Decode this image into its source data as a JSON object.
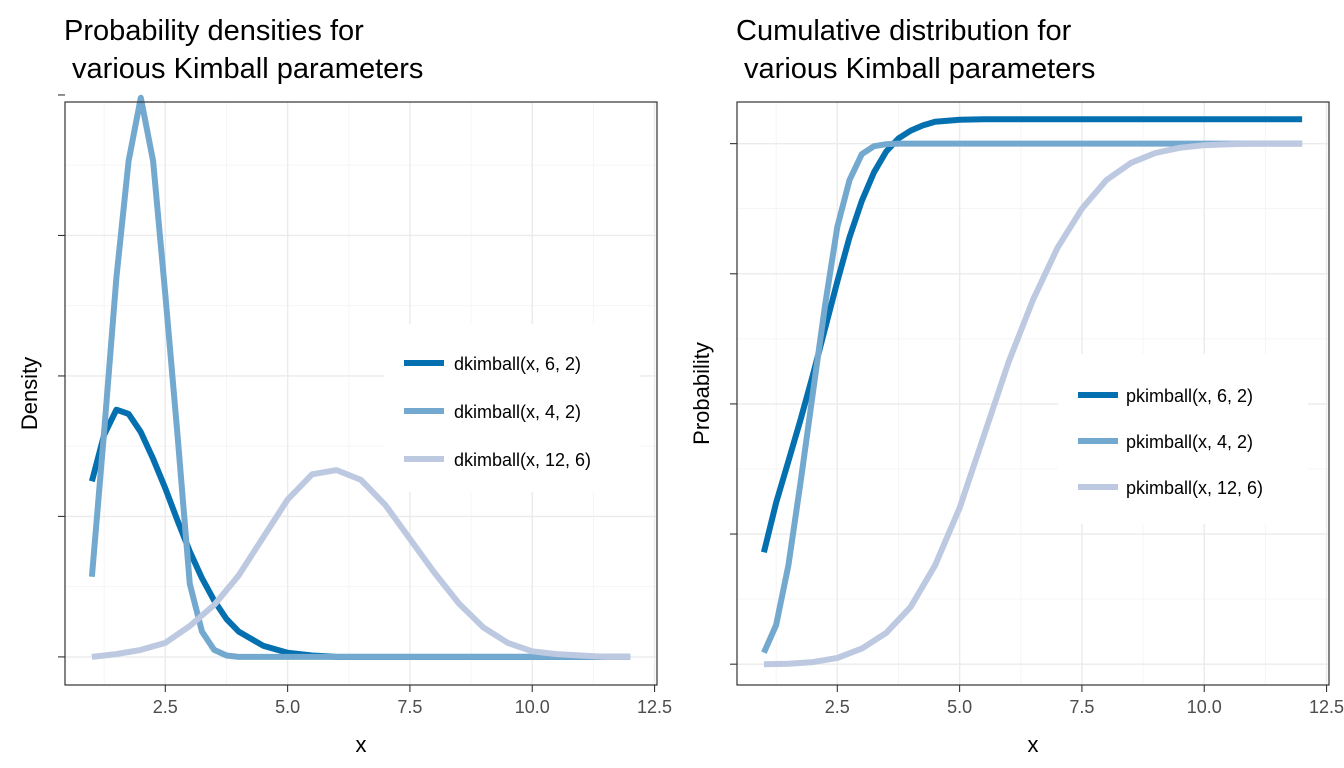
{
  "chart_data": [
    {
      "type": "line",
      "title_line1": "Probability densities for",
      "title_line2": " various Kimball parameters",
      "xlabel": "x",
      "ylabel": "Density",
      "xlim": [
        0.45,
        12.55
      ],
      "ylim": [
        -0.02,
        0.395
      ],
      "x_ticks": [
        2.5,
        5.0,
        7.5,
        10.0,
        12.5
      ],
      "x_tick_labels": [
        "2.5",
        "5.0",
        "7.5",
        "10.0",
        "12.5"
      ],
      "y_ticks": [
        0.0,
        0.1,
        0.2,
        0.3,
        0.4
      ],
      "y_tick_labels": [
        "",
        "",
        "",
        "",
        ""
      ],
      "grid": true,
      "legend_position": "right",
      "series": [
        {
          "name": "dkimball(x, 6, 2)",
          "color": "#0570b0",
          "x": [
            1.0,
            1.25,
            1.5,
            1.75,
            2.0,
            2.25,
            2.5,
            2.75,
            3.0,
            3.25,
            3.5,
            3.75,
            4.0,
            4.5,
            5.0,
            5.5,
            6.0,
            7.0,
            8.0,
            10.0,
            12.0
          ],
          "y": [
            0.125,
            0.158,
            0.176,
            0.173,
            0.16,
            0.141,
            0.12,
            0.097,
            0.075,
            0.056,
            0.04,
            0.027,
            0.018,
            0.008,
            0.003,
            0.001,
            0.0,
            0.0,
            0.0,
            0.0,
            0.0
          ]
        },
        {
          "name": "dkimball(x, 4, 2)",
          "color": "#74a9cf",
          "x": [
            1.0,
            1.25,
            1.5,
            1.75,
            2.0,
            2.25,
            2.5,
            2.75,
            3.0,
            3.25,
            3.5,
            3.75,
            4.0,
            4.5,
            5.0,
            6.0,
            8.0,
            10.0,
            12.0
          ],
          "y": [
            0.057,
            0.16,
            0.27,
            0.353,
            0.398,
            0.353,
            0.258,
            0.158,
            0.052,
            0.018,
            0.005,
            0.001,
            0.0,
            0.0,
            0.0,
            0.0,
            0.0,
            0.0,
            0.0
          ]
        },
        {
          "name": "dkimball(x, 12, 6)",
          "color": "#bdc9e1",
          "x": [
            1.0,
            1.5,
            2.0,
            2.5,
            3.0,
            3.5,
            4.0,
            4.5,
            5.0,
            5.5,
            6.0,
            6.5,
            7.0,
            7.5,
            8.0,
            8.5,
            9.0,
            9.5,
            10.0,
            10.5,
            11.0,
            11.5,
            12.0
          ],
          "y": [
            0.0,
            0.002,
            0.005,
            0.01,
            0.022,
            0.037,
            0.058,
            0.085,
            0.112,
            0.13,
            0.133,
            0.126,
            0.108,
            0.084,
            0.06,
            0.038,
            0.021,
            0.01,
            0.004,
            0.002,
            0.001,
            0.0,
            0.0
          ]
        }
      ]
    },
    {
      "type": "line",
      "title_line1": "Cumulative distribution for",
      "title_line2": " various Kimball parameters",
      "xlabel": "x",
      "ylabel": "Probability",
      "xlim": [
        0.45,
        12.55
      ],
      "ylim": [
        -0.04,
        1.08
      ],
      "x_ticks": [
        2.5,
        5.0,
        7.5,
        10.0,
        12.5
      ],
      "x_tick_labels": [
        "2.5",
        "5.0",
        "7.5",
        "10.0",
        "12.5"
      ],
      "y_ticks": [
        0.0,
        0.25,
        0.5,
        0.75,
        1.0
      ],
      "y_tick_labels": [
        "",
        "",
        "",
        "",
        ""
      ],
      "grid": true,
      "legend_position": "right",
      "series": [
        {
          "name": "pkimball(x, 6, 2)",
          "color": "#0570b0",
          "x": [
            1.0,
            1.25,
            1.5,
            1.75,
            2.0,
            2.25,
            2.5,
            2.75,
            3.0,
            3.25,
            3.5,
            3.75,
            4.0,
            4.25,
            4.5,
            5.0,
            5.5,
            6.0,
            7.0,
            8.0,
            10.0,
            12.0
          ],
          "y": [
            0.215,
            0.31,
            0.39,
            0.47,
            0.555,
            0.645,
            0.735,
            0.82,
            0.89,
            0.945,
            0.985,
            1.01,
            1.025,
            1.035,
            1.042,
            1.046,
            1.047,
            1.047,
            1.047,
            1.047,
            1.047,
            1.047
          ]
        },
        {
          "name": "pkimball(x, 4, 2)",
          "color": "#74a9cf",
          "x": [
            1.0,
            1.25,
            1.5,
            1.75,
            2.0,
            2.25,
            2.5,
            2.75,
            3.0,
            3.25,
            3.5,
            3.75,
            4.0,
            4.5,
            5.0,
            6.0,
            8.0,
            10.0,
            12.0
          ],
          "y": [
            0.022,
            0.075,
            0.19,
            0.35,
            0.52,
            0.69,
            0.84,
            0.93,
            0.98,
            0.995,
            0.999,
            1.0,
            1.0,
            1.0,
            1.0,
            1.0,
            1.0,
            1.0,
            1.0
          ]
        },
        {
          "name": "pkimball(x, 12, 6)",
          "color": "#bdc9e1",
          "x": [
            1.0,
            1.5,
            2.0,
            2.5,
            3.0,
            3.5,
            4.0,
            4.5,
            5.0,
            5.5,
            6.0,
            6.5,
            7.0,
            7.5,
            8.0,
            8.5,
            9.0,
            9.5,
            10.0,
            10.5,
            11.0,
            11.5,
            12.0
          ],
          "y": [
            0.0,
            0.001,
            0.004,
            0.012,
            0.03,
            0.06,
            0.11,
            0.19,
            0.3,
            0.44,
            0.58,
            0.7,
            0.8,
            0.875,
            0.93,
            0.963,
            0.982,
            0.992,
            0.997,
            0.999,
            1.0,
            1.0,
            1.0
          ]
        }
      ]
    }
  ]
}
